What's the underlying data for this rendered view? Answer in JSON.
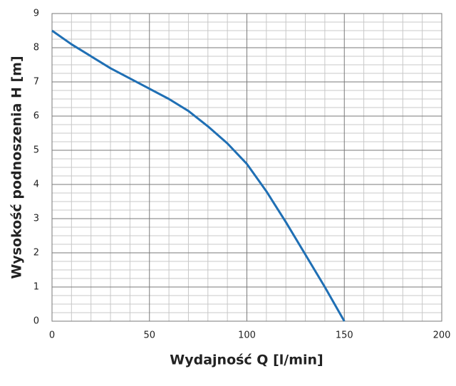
{
  "chart_data": {
    "type": "line",
    "x_label": "Wydajność Q [l/min]",
    "y_label": "Wysokość podnoszenia H [m]",
    "x": [
      0,
      10,
      20,
      30,
      40,
      50,
      60,
      70,
      80,
      90,
      100,
      110,
      120,
      130,
      140,
      150
    ],
    "series": [
      {
        "color": "#1f6fb4",
        "values": [
          8.5,
          8.1,
          7.75,
          7.4,
          7.1,
          6.8,
          6.5,
          6.15,
          5.7,
          5.2,
          4.6,
          3.8,
          2.9,
          1.95,
          1.0,
          0
        ]
      }
    ],
    "xlim": [
      0,
      200
    ],
    "xticks": [
      0,
      50,
      100,
      150,
      200
    ],
    "ylim": [
      0,
      9
    ],
    "yticks": [
      0,
      1,
      2,
      3,
      4,
      5,
      6,
      7,
      8,
      9
    ],
    "xminorticks": [
      10,
      20,
      30,
      40,
      60,
      70,
      80,
      90,
      110,
      120,
      130,
      140,
      160,
      170,
      180,
      190
    ],
    "yminorticks": [
      0.25,
      0.5,
      0.75,
      1.25,
      1.5,
      1.75,
      2.25,
      2.5,
      2.75,
      3.25,
      3.5,
      3.75,
      4.25,
      4.5,
      4.75,
      5.25,
      5.5,
      5.75,
      6.25,
      6.5,
      6.75,
      7.25,
      7.5,
      7.75,
      8.25,
      8.5,
      8.75
    ],
    "grid": true
  }
}
